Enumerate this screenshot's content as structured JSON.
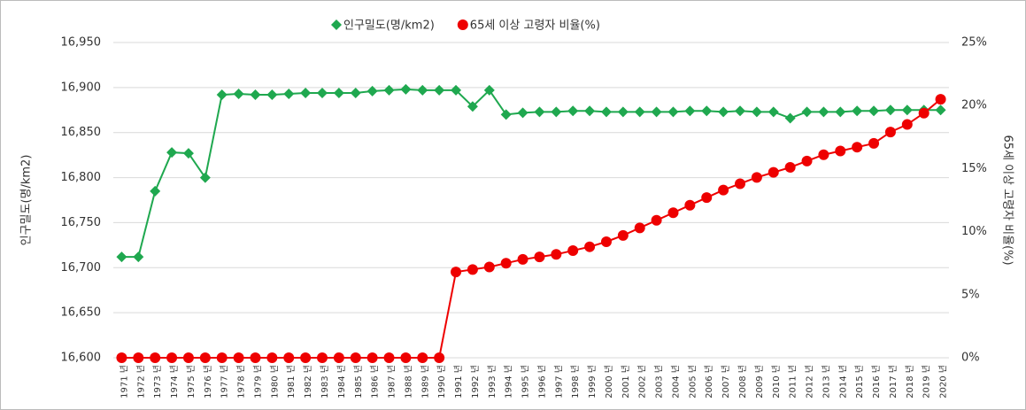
{
  "chart_data": {
    "type": "line",
    "categories": [
      "1971 년",
      "1972 년",
      "1973 년",
      "1974 년",
      "1975 년",
      "1976 년",
      "1977 년",
      "1978 년",
      "1979 년",
      "1980 년",
      "1981 년",
      "1982 년",
      "1983 년",
      "1984 년",
      "1985 년",
      "1986 년",
      "1987 년",
      "1988 년",
      "1989 년",
      "1990 년",
      "1991 년",
      "1992 년",
      "1993 년",
      "1994 년",
      "1995 년",
      "1996 년",
      "1997 년",
      "1998 년",
      "1999 년",
      "2000 년",
      "2001 년",
      "2002 년",
      "2003 년",
      "2004 년",
      "2005 년",
      "2006 년",
      "2007 년",
      "2008 년",
      "2009 년",
      "2010 년",
      "2011 년",
      "2012 년",
      "2013 년",
      "2014 년",
      "2015 년",
      "2016 년",
      "2017 년",
      "2018 년",
      "2019 년",
      "2020 년"
    ],
    "series": [
      {
        "name": "인구밀도(명/km2)",
        "color": "#1fa84f",
        "marker": "diamond",
        "values": [
          16712,
          16712,
          16785,
          16828,
          16827,
          16800,
          16892,
          16893,
          16892,
          16892,
          16893,
          16894,
          16894,
          16894,
          16894,
          16896,
          16897,
          16898,
          16897,
          16897,
          16897,
          16879,
          16897,
          16870,
          16872,
          16873,
          16873,
          16874,
          16874,
          16873,
          16873,
          16873,
          16873,
          16873,
          16874,
          16874,
          16873,
          16874,
          16873,
          16873,
          16866,
          16873,
          16873,
          16873,
          16874,
          16874,
          16875,
          16875,
          16875,
          16875
        ]
      },
      {
        "name": "65세 이상 고령자 비율(%)",
        "color": "#ee0000",
        "marker": "circle",
        "axis": "y2",
        "values": [
          0,
          0,
          0,
          0,
          0,
          0,
          0,
          0,
          0,
          0,
          0,
          0,
          0,
          0,
          0,
          0,
          0,
          0,
          0,
          0,
          6.8,
          7.0,
          7.2,
          7.5,
          7.8,
          8.0,
          8.2,
          8.5,
          8.8,
          9.2,
          9.7,
          10.3,
          10.9,
          11.5,
          12.1,
          12.7,
          13.3,
          13.8,
          14.3,
          14.7,
          15.1,
          15.6,
          16.1,
          16.4,
          16.7,
          17.0,
          17.9,
          18.5,
          19.4,
          20.5
        ]
      }
    ],
    "ylabel": "인구밀도(명/km2)",
    "y2label": "65세 이상 고령자 비율(%)",
    "ylim": [
      16600,
      16950
    ],
    "yticks": [
      {
        "value": 16600,
        "label": "16,600"
      },
      {
        "value": 16650,
        "label": "16,650"
      },
      {
        "value": 16700,
        "label": "16,700"
      },
      {
        "value": 16750,
        "label": "16,750"
      },
      {
        "value": 16800,
        "label": "16,800"
      },
      {
        "value": 16850,
        "label": "16,850"
      },
      {
        "value": 16900,
        "label": "16,900"
      },
      {
        "value": 16950,
        "label": "16,950"
      }
    ],
    "y2lim": [
      0,
      25
    ],
    "y2ticks": [
      {
        "value": 0,
        "label": "0%"
      },
      {
        "value": 5,
        "label": "5%"
      },
      {
        "value": 10,
        "label": "10%"
      },
      {
        "value": 15,
        "label": "15%"
      },
      {
        "value": 20,
        "label": "20%"
      },
      {
        "value": 25,
        "label": "25%"
      }
    ],
    "grid": true,
    "legend": "top"
  }
}
